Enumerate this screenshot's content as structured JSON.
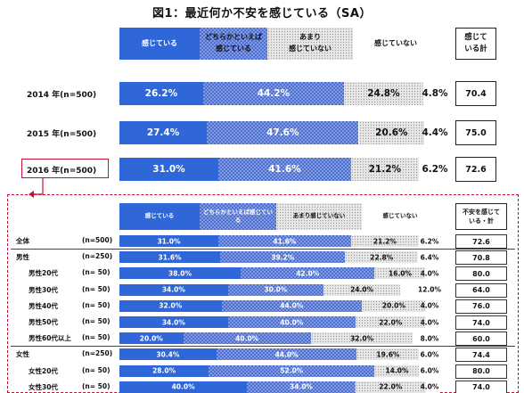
{
  "title": "図1：最近何か不安を感じている（SA）",
  "colors": {
    "s1": "#2f66d8",
    "s2_bg": "#7f9be6",
    "s2_fg": "#2d4fb8",
    "s3_bg": "#e6e6e6",
    "s3_fg": "#9a9a9a",
    "s4": "#ffffff",
    "accent": "#c8102e"
  },
  "legend": {
    "top": [
      "感じている",
      "どちらかといえば\n感じている",
      "あまり\n感じていない",
      "感じていない"
    ],
    "total_header": "感じて\nいる計",
    "detail": [
      "感じている",
      "どちらかといえば感じてい\nる",
      "あまり感じていない",
      "感じていない"
    ],
    "detail_total_header": "不安を感じて\nいる・計"
  },
  "chart_data": [
    {
      "type": "bar",
      "stacked": true,
      "orientation": "horizontal",
      "title": "図1：最近何か不安を感じている（SA）",
      "series_names": [
        "感じている",
        "どちらかといえば感じている",
        "あまり感じていない",
        "感じていない"
      ],
      "rows": [
        {
          "label": "2014 年(n=500)",
          "values": [
            26.2,
            44.2,
            24.8,
            4.8
          ],
          "labels": [
            "26.2%",
            "44.2%",
            "24.8%",
            "4.8%"
          ],
          "total": "70.4"
        },
        {
          "label": "2015 年(n=500)",
          "values": [
            27.4,
            47.6,
            20.6,
            4.4
          ],
          "labels": [
            "27.4%",
            "47.6%",
            "20.6%",
            "4.4%"
          ],
          "total": "75.0"
        },
        {
          "label": "2016 年(n=500)",
          "values": [
            31.0,
            41.6,
            21.2,
            6.2
          ],
          "labels": [
            "31.0%",
            "41.6%",
            "21.2%",
            "6.2%"
          ],
          "total": "72.6",
          "highlighted": true
        }
      ]
    },
    {
      "type": "bar",
      "stacked": true,
      "orientation": "horizontal",
      "series_names": [
        "感じている",
        "どちらかといえば感じている",
        "あまり感じていない",
        "感じていない"
      ],
      "rows": [
        {
          "label": "全体",
          "n": "(n=500)",
          "values": [
            31.0,
            41.6,
            21.2,
            6.2
          ],
          "labels": [
            "31.0%",
            "41.6%",
            "21.2%",
            "6.2%"
          ],
          "total": "72.6"
        },
        {
          "label": "男性",
          "n": "(n=250)",
          "values": [
            31.6,
            39.2,
            22.8,
            6.4
          ],
          "labels": [
            "31.6%",
            "39.2%",
            "22.8%",
            "6.4%"
          ],
          "total": "70.8",
          "group_start": true
        },
        {
          "label": "男性20代",
          "n": "(n=  50)",
          "values": [
            38.0,
            42.0,
            16.0,
            4.0
          ],
          "labels": [
            "38.0%",
            "42.0%",
            "16.0%",
            "4.0%"
          ],
          "total": "80.0",
          "indent": true
        },
        {
          "label": "男性30代",
          "n": "(n=  50)",
          "values": [
            34.0,
            30.0,
            24.0,
            12.0
          ],
          "labels": [
            "34.0%",
            "30.0%",
            "24.0%",
            "12.0%"
          ],
          "total": "64.0",
          "indent": true
        },
        {
          "label": "男性40代",
          "n": "(n=  50)",
          "values": [
            32.0,
            44.0,
            20.0,
            4.0
          ],
          "labels": [
            "32.0%",
            "44.0%",
            "20.0%",
            "4.0%"
          ],
          "total": "76.0",
          "indent": true
        },
        {
          "label": "男性50代",
          "n": "(n=  50)",
          "values": [
            34.0,
            40.0,
            22.0,
            4.0
          ],
          "labels": [
            "34.0%",
            "40.0%",
            "22.0%",
            "4.0%"
          ],
          "total": "74.0",
          "indent": true
        },
        {
          "label": "男性60代以上",
          "n": "(n=  50)",
          "values": [
            20.0,
            40.0,
            32.0,
            8.0
          ],
          "labels": [
            "20.0%",
            "40.0%",
            "32.0%",
            "8.0%"
          ],
          "total": "60.0",
          "indent": true
        },
        {
          "label": "女性",
          "n": "(n=250)",
          "values": [
            30.4,
            44.0,
            19.6,
            6.0
          ],
          "labels": [
            "30.4%",
            "44.0%",
            "19.6%",
            "6.0%"
          ],
          "total": "74.4",
          "group_start": true
        },
        {
          "label": "女性20代",
          "n": "(n=  50)",
          "values": [
            28.0,
            52.0,
            14.0,
            6.0
          ],
          "labels": [
            "28.0%",
            "52.0%",
            "14.0%",
            "6.0%"
          ],
          "total": "80.0",
          "indent": true
        },
        {
          "label": "女性30代",
          "n": "(n=  50)",
          "values": [
            40.0,
            34.0,
            22.0,
            4.0
          ],
          "labels": [
            "40.0%",
            "34.0%",
            "22.0%",
            "4.0%"
          ],
          "total": "74.0",
          "indent": true
        }
      ]
    }
  ]
}
